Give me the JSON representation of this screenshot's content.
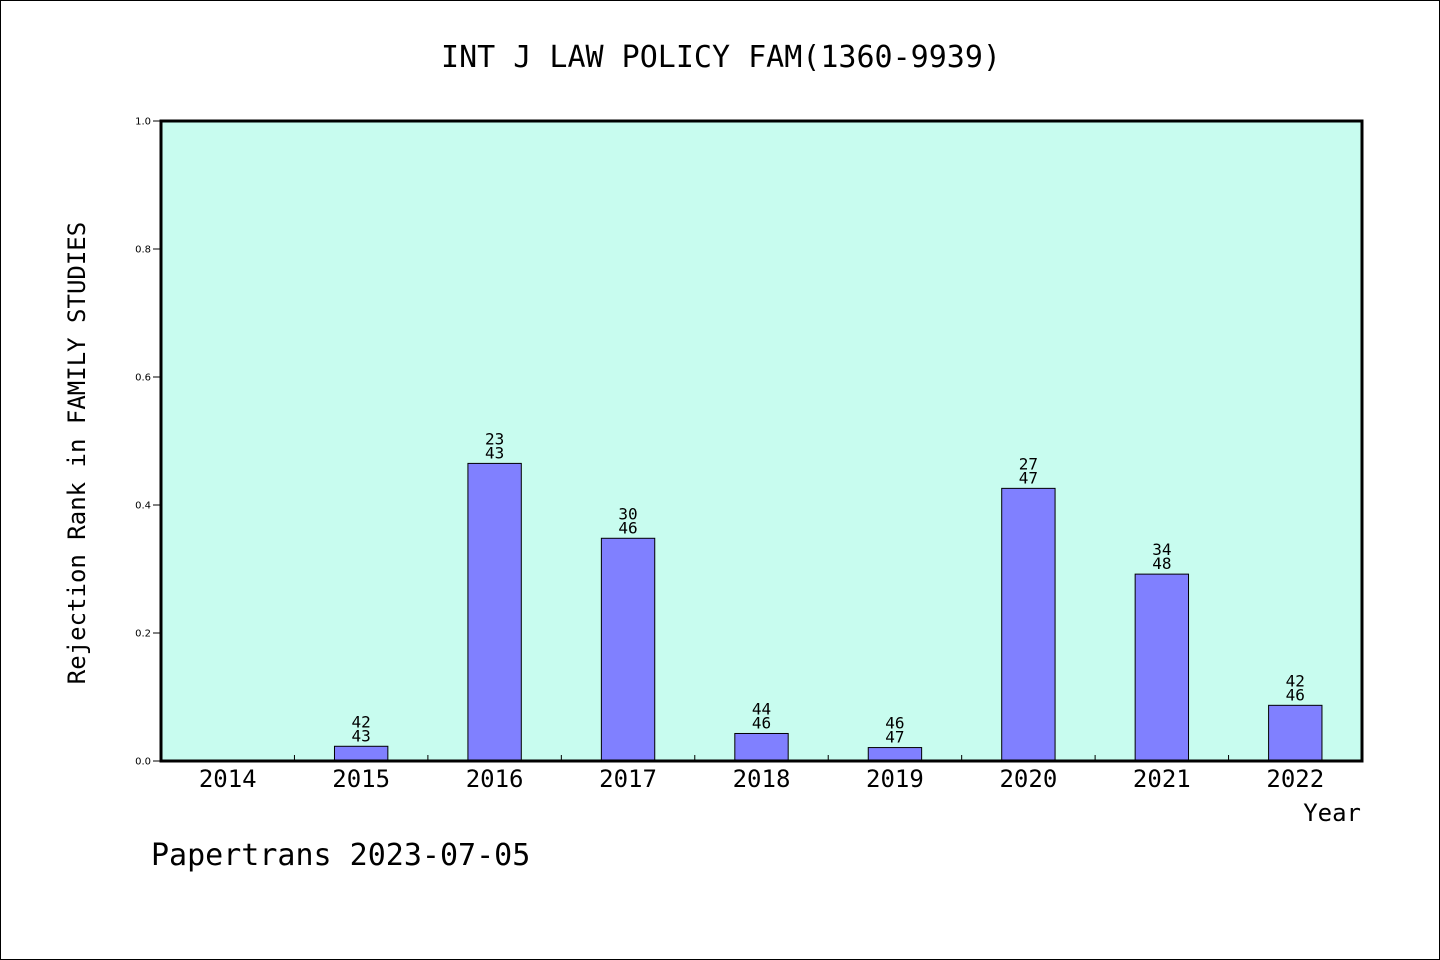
{
  "chart_data": {
    "type": "bar",
    "title": "INT J LAW POLICY FAM(1360-9939)",
    "xlabel": "Year",
    "ylabel": "Rejection Rank in FAMILY STUDIES",
    "ylim": [
      0,
      1.0
    ],
    "yticks": [
      "0.0",
      "0.2",
      "0.4",
      "0.6",
      "0.8",
      "1.0"
    ],
    "grid": false,
    "categories": [
      "2014",
      "2015",
      "2016",
      "2017",
      "2018",
      "2019",
      "2020",
      "2021",
      "2022"
    ],
    "values": [
      0,
      0.023,
      0.465,
      0.348,
      0.043,
      0.021,
      0.426,
      0.292,
      0.087
    ],
    "label_top": [
      "",
      "42",
      "23",
      "30",
      "44",
      "46",
      "27",
      "34",
      "42"
    ],
    "label_bottom": [
      "",
      "43",
      "43",
      "46",
      "46",
      "47",
      "47",
      "48",
      "46"
    ],
    "colors": {
      "plot_bg": "#c8fcef",
      "bar": "#8080ff",
      "axis": "#000000"
    }
  },
  "footer": "Papertrans 2023-07-05"
}
